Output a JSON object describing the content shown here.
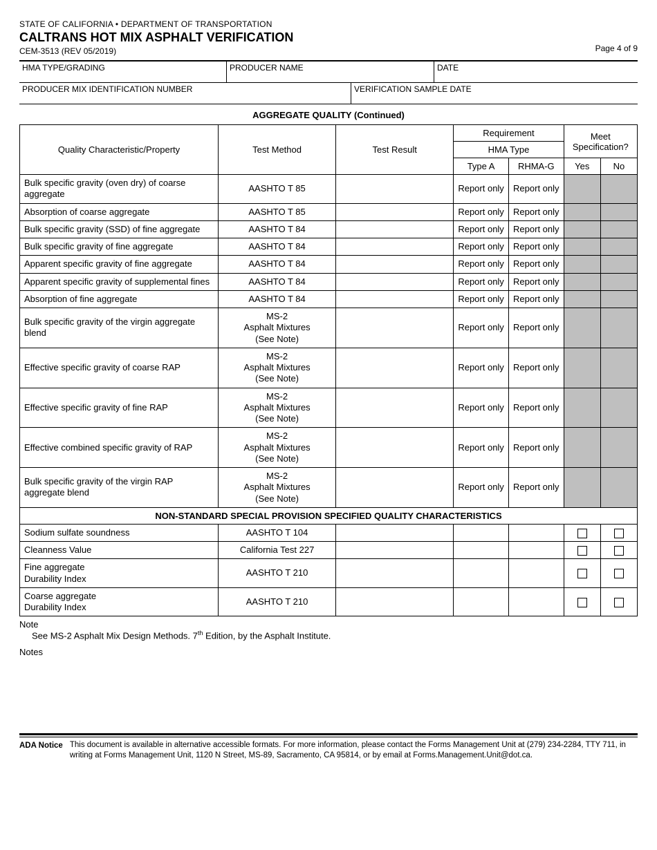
{
  "header": {
    "dept": "STATE OF CALIFORNIA • DEPARTMENT OF TRANSPORTATION",
    "title": "CALTRANS HOT MIX ASPHALT VERIFICATION",
    "form_rev": "CEM-3513 (REV 05/2019)",
    "page_label": "Page 4 of 9"
  },
  "meta": {
    "hma_type": "HMA TYPE/GRADING",
    "producer_name": "PRODUCER NAME",
    "date": "DATE",
    "mix_id": "PRODUCER MIX IDENTIFICATION NUMBER",
    "sample_date": "VERIFICATION SAMPLE DATE"
  },
  "section1_title": "AGGREGATE QUALITY (Continued)",
  "qtable_headers": {
    "property": "Quality Characteristic/Property",
    "method": "Test Method",
    "result": "Test Result",
    "requirement": "Requirement",
    "hma_type": "HMA Type",
    "type_a": "Type A",
    "rhmag": "RHMA-G",
    "meet_spec": "Meet Specification?",
    "yes": "Yes",
    "no": "No"
  },
  "rows": [
    {
      "prop": "Bulk specific gravity (oven dry) of coarse aggregate",
      "method": "AASHTO T 85",
      "a": "Report only",
      "g": "Report only"
    },
    {
      "prop": "Absorption of coarse aggregate",
      "method": "AASHTO T 85",
      "a": "Report only",
      "g": "Report only"
    },
    {
      "prop": "Bulk specific gravity (SSD) of fine aggregate",
      "method": "AASHTO T 84",
      "a": "Report only",
      "g": "Report only"
    },
    {
      "prop": "Bulk specific gravity of fine aggregate",
      "method": "AASHTO T 84",
      "a": "Report only",
      "g": "Report only"
    },
    {
      "prop": "Apparent specific gravity of fine aggregate",
      "method": "AASHTO T 84",
      "a": "Report only",
      "g": "Report only"
    },
    {
      "prop": "Apparent specific gravity of supplemental fines",
      "method": "AASHTO T 84",
      "a": "Report only",
      "g": "Report only"
    },
    {
      "prop": "Absorption of fine aggregate",
      "method": "AASHTO T 84",
      "a": "Report only",
      "g": "Report only"
    },
    {
      "prop": "Bulk specific gravity of the virgin aggregate blend",
      "method": "MS-2\nAsphalt Mixtures\n(See Note)",
      "a": "Report only",
      "g": "Report only"
    },
    {
      "prop": "Effective specific gravity of coarse RAP",
      "method": "MS-2\nAsphalt Mixtures\n(See Note)",
      "a": "Report only",
      "g": "Report only"
    },
    {
      "prop": "Effective specific gravity of fine RAP",
      "method": "MS-2\nAsphalt Mixtures\n(See Note)",
      "a": "Report only",
      "g": "Report only"
    },
    {
      "prop": "Effective combined specific gravity of RAP",
      "method": "MS-2\nAsphalt Mixtures\n(See Note)",
      "a": "Report only",
      "g": "Report only"
    },
    {
      "prop": "Bulk specific gravity of the virgin RAP aggregate blend",
      "method": "MS-2\nAsphalt Mixtures\n(See Note)",
      "a": "Report only",
      "g": "Report only"
    }
  ],
  "section2_title": "NON-STANDARD SPECIAL PROVISION SPECIFIED QUALITY CHARACTERISTICS",
  "rows2": [
    {
      "prop": "Sodium sulfate soundness",
      "method": "AASHTO T 104"
    },
    {
      "prop": "Cleanness Value",
      "method": "California Test 227"
    },
    {
      "prop": "Fine aggregate\nDurability Index",
      "method": "AASHTO T 210"
    },
    {
      "prop": "Coarse aggregate\nDurability Index",
      "method": "AASHTO T 210"
    }
  ],
  "note_label": "Note",
  "note_text_pre": "See MS-2 Asphalt Mix Design Methods. 7",
  "note_text_sup": "th",
  "note_text_post": " Edition, by the Asphalt Institute.",
  "notes_label": "Notes",
  "footer": {
    "ada": "ADA Notice",
    "text": "This document is available in alternative accessible formats. For more information, please contact the Forms Management Unit at (279) 234-2284, TTY 711, in writing at Forms Management Unit, 1120 N Street, MS-89, Sacramento, CA 95814, or by email at Forms.Management.Unit@dot.ca."
  },
  "colors": {
    "shaded_bg": "#bfbfbf"
  }
}
